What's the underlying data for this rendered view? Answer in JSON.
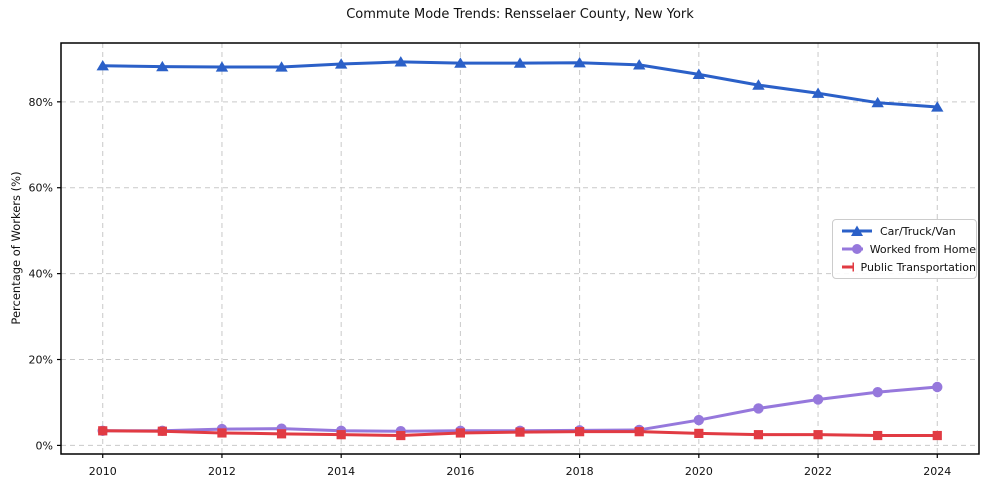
{
  "title": "Commute Mode Trends: Rensselaer County, New York",
  "ylabel": "Percentage of Workers (%)",
  "colors": {
    "car": "#2b60c8",
    "home": "#9678dc",
    "transit": "#e13b43",
    "grid": "#c9c9c9",
    "spine": "#000000"
  },
  "chart_data": {
    "type": "line",
    "x": [
      2010,
      2011,
      2012,
      2013,
      2014,
      2015,
      2016,
      2017,
      2018,
      2019,
      2020,
      2021,
      2022,
      2023,
      2024
    ],
    "series": [
      {
        "name": "Car/Truck/Van",
        "marker": "triangle",
        "color": "#2b60c8",
        "values": [
          88.4,
          88.2,
          88.1,
          88.1,
          88.8,
          89.3,
          89.0,
          89.0,
          89.1,
          88.6,
          86.4,
          83.9,
          82.0,
          79.8,
          78.8
        ]
      },
      {
        "name": "Worked from Home",
        "marker": "circle",
        "color": "#9678dc",
        "values": [
          3.4,
          3.4,
          3.8,
          3.9,
          3.4,
          3.3,
          3.4,
          3.4,
          3.5,
          3.6,
          5.9,
          8.6,
          10.7,
          12.4,
          13.6
        ]
      },
      {
        "name": "Public Transportation",
        "marker": "square",
        "color": "#e13b43",
        "values": [
          3.4,
          3.3,
          2.9,
          2.7,
          2.5,
          2.3,
          2.9,
          3.1,
          3.2,
          3.2,
          2.8,
          2.5,
          2.5,
          2.3,
          2.3
        ]
      }
    ],
    "xticks": [
      2010,
      2012,
      2014,
      2016,
      2018,
      2020,
      2022,
      2024
    ],
    "xtick_labels": [
      "2010",
      "2012",
      "2014",
      "2016",
      "2018",
      "2020",
      "2022",
      "2024"
    ],
    "yticks": [
      0,
      20,
      40,
      60,
      80
    ],
    "ytick_labels": [
      "0%",
      "20%",
      "40%",
      "60%",
      "80%"
    ],
    "xlim": [
      2009.3,
      2024.7
    ],
    "ylim": [
      -2.0,
      93.7
    ],
    "grid": true,
    "legend_position": "center-right"
  }
}
